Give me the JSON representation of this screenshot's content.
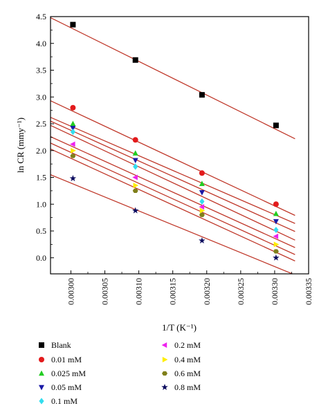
{
  "chart_data": {
    "type": "scatter",
    "xlabel": "1/T (K⁻¹)",
    "ylabel": "ln CR (mmy⁻¹)",
    "xlim": [
      0.00297,
      0.00335
    ],
    "ylim": [
      -0.3,
      4.5
    ],
    "x_ticks": [
      "0.00300",
      "0.00305",
      "0.00310",
      "0.00315",
      "0.00320",
      "0.00325",
      "0.00330",
      "0.00335"
    ],
    "y_ticks": [
      "0.0",
      "0.5",
      "1.0",
      "1.5",
      "2.0",
      "2.5",
      "3.0",
      "3.5",
      "4.0",
      "4.5"
    ],
    "x": [
      0.003003,
      0.003095,
      0.003193,
      0.003302
    ],
    "series": [
      {
        "name": "Blank",
        "marker": "square",
        "color": "#000000",
        "values": [
          4.35,
          3.69,
          3.04,
          2.47
        ],
        "fit": [
          [
            0.00297,
            4.48
          ],
          [
            0.00333,
            2.22
          ]
        ]
      },
      {
        "name": "0.01 mM",
        "marker": "circle",
        "color": "#e31a1c",
        "values": [
          2.8,
          2.2,
          1.58,
          1.0
        ],
        "fit": [
          [
            0.00297,
            2.93
          ],
          [
            0.00333,
            0.79
          ]
        ]
      },
      {
        "name": "0.025 mM",
        "marker": "triangle-up",
        "color": "#22cc22",
        "values": [
          2.5,
          1.95,
          1.38,
          0.82
        ],
        "fit": [
          [
            0.00297,
            2.62
          ],
          [
            0.00333,
            0.64
          ]
        ]
      },
      {
        "name": "0.05 mM",
        "marker": "triangle-down",
        "color": "#1a1aa6",
        "values": [
          2.42,
          1.82,
          1.22,
          0.68
        ],
        "fit": [
          [
            0.00297,
            2.55
          ],
          [
            0.00333,
            0.49
          ]
        ]
      },
      {
        "name": "0.1 mM",
        "marker": "diamond",
        "color": "#33ddee",
        "values": [
          2.35,
          1.7,
          1.05,
          0.52
        ],
        "fit": [
          [
            0.00297,
            2.47
          ],
          [
            0.00333,
            0.33
          ]
        ]
      },
      {
        "name": "0.2 mM",
        "marker": "triangle-left",
        "color": "#ee22ee",
        "values": [
          2.12,
          1.5,
          0.95,
          0.4
        ],
        "fit": [
          [
            0.00297,
            2.26
          ],
          [
            0.00333,
            0.19
          ]
        ]
      },
      {
        "name": "0.4 mM",
        "marker": "triangle-right",
        "color": "#ffee00",
        "values": [
          2.0,
          1.35,
          0.88,
          0.25
        ],
        "fit": [
          [
            0.00297,
            2.14
          ],
          [
            0.00333,
            0.06
          ]
        ]
      },
      {
        "name": "0.6 mM",
        "marker": "hexagon",
        "color": "#7f7f1a",
        "values": [
          1.9,
          1.25,
          0.8,
          0.12
        ],
        "fit": [
          [
            0.00297,
            2.03
          ],
          [
            0.00333,
            -0.06
          ]
        ]
      },
      {
        "name": "0.8 mM",
        "marker": "star",
        "color": "#0b0b5e",
        "values": [
          1.48,
          0.88,
          0.32,
          0.0
        ],
        "fit": [
          [
            0.00297,
            1.55
          ],
          [
            0.00333,
            -0.32
          ]
        ]
      }
    ],
    "legend_position": "bottom"
  }
}
